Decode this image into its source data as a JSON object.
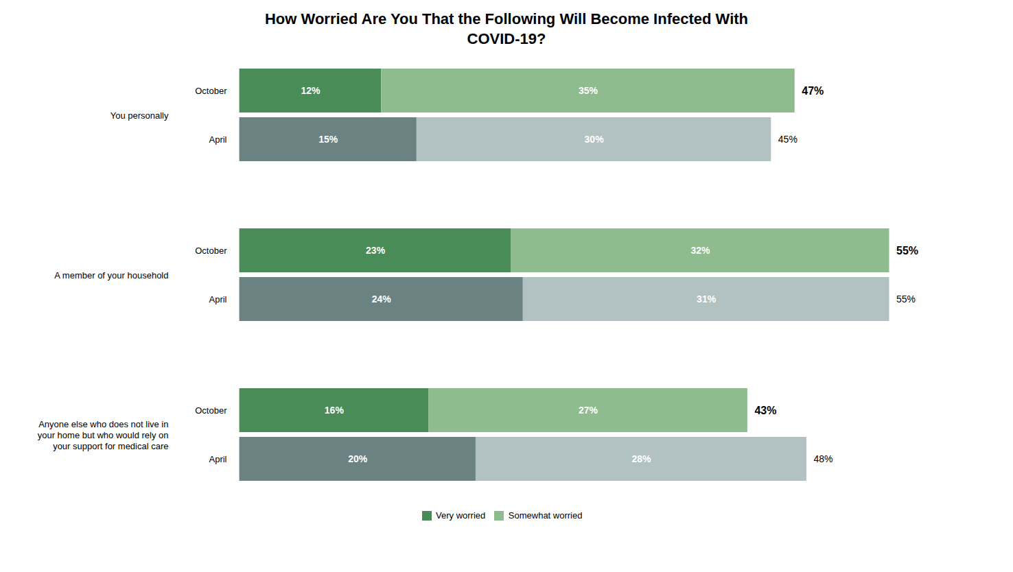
{
  "chart_data": {
    "type": "bar",
    "orientation": "horizontal",
    "stacked": true,
    "title": "How Worried Are You That the Following Will Become Infected With\nCOVID-19?",
    "groups": [
      "You personally",
      "A member of your household",
      "Anyone else who does not live in\nyour home but who would rely on\nyour support for medical care"
    ],
    "categories": [
      "October",
      "April",
      "October",
      "April",
      "October",
      "April"
    ],
    "series": [
      {
        "name": "Very worried",
        "color": "#4a8c57",
        "colors": [
          "#4a8c57",
          "#6b8282",
          "#4a8c57",
          "#6b8282",
          "#4a8c57",
          "#6b8282"
        ],
        "values": [
          12,
          15,
          23,
          24,
          16,
          20
        ],
        "value_labels": [
          "12%",
          "15%",
          "23%",
          "24%",
          "16%",
          "20%"
        ]
      },
      {
        "name": "Somewhat worried",
        "color": "#8fbc8f",
        "colors": [
          "#8fbc8f",
          "#b2c2c2",
          "#8fbc8f",
          "#b2c2c2",
          "#8fbc8f",
          "#b2c2c2"
        ],
        "values": [
          35,
          30,
          32,
          31,
          27,
          28
        ],
        "value_labels": [
          "35%",
          "30%",
          "32%",
          "31%",
          "27%",
          "28%"
        ]
      }
    ],
    "totals": [
      47,
      45,
      55,
      55,
      43,
      48
    ],
    "total_labels": [
      "47%",
      "45%",
      "55%",
      "55%",
      "43%",
      "48%"
    ],
    "xlim": [
      -0.5,
      62
    ],
    "data_labels": true,
    "tick_labels": false,
    "legend": "bottom"
  }
}
